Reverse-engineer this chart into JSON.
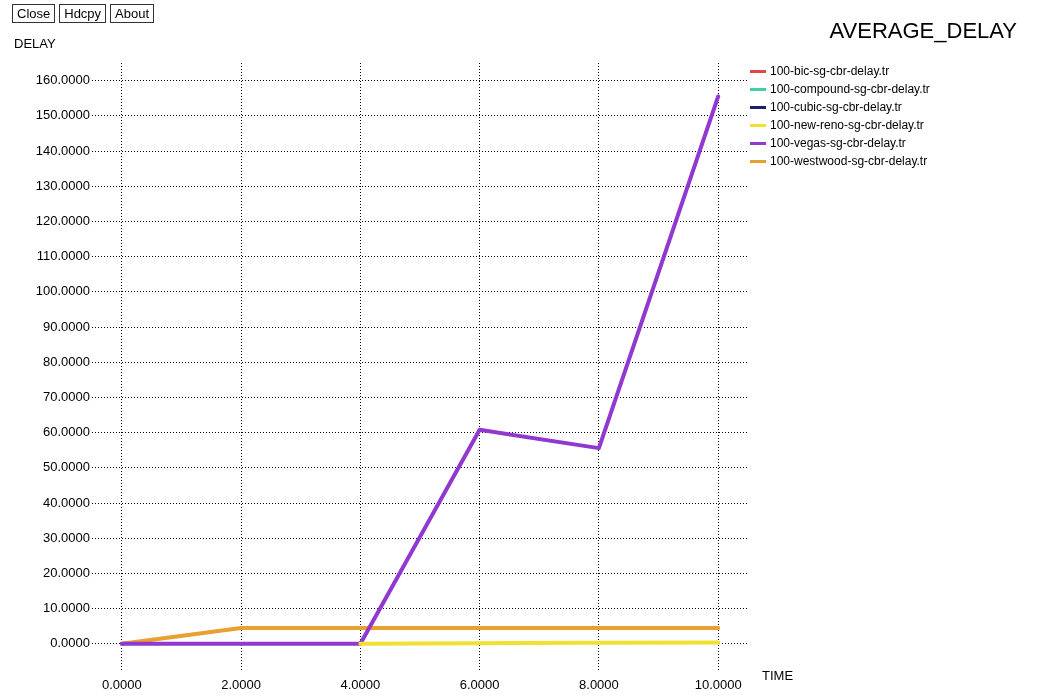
{
  "chart_data": {
    "type": "line",
    "title": "AVERAGE_DELAY",
    "xlabel": "TIME",
    "ylabel": "DELAY",
    "annotations": [
      "Close",
      "Hdcpy",
      "About"
    ],
    "x": [
      0,
      2,
      4,
      6,
      8,
      10
    ],
    "xlim": [
      -0.5,
      10.5
    ],
    "ylim": [
      -8,
      165
    ],
    "xticks": [
      {
        "value": 0,
        "label": "0.0000"
      },
      {
        "value": 2,
        "label": "2.0000"
      },
      {
        "value": 4,
        "label": "4.0000"
      },
      {
        "value": 6,
        "label": "6.0000"
      },
      {
        "value": 8,
        "label": "8.0000"
      },
      {
        "value": 10,
        "label": "10.0000"
      }
    ],
    "yticks": [
      {
        "value": 0,
        "label": "0.0000"
      },
      {
        "value": 10,
        "label": "10.0000"
      },
      {
        "value": 20,
        "label": "20.0000"
      },
      {
        "value": 30,
        "label": "30.0000"
      },
      {
        "value": 40,
        "label": "40.0000"
      },
      {
        "value": 50,
        "label": "50.0000"
      },
      {
        "value": 60,
        "label": "60.0000"
      },
      {
        "value": 70,
        "label": "70.0000"
      },
      {
        "value": 80,
        "label": "80.0000"
      },
      {
        "value": 90,
        "label": "90.0000"
      },
      {
        "value": 100,
        "label": "100.0000"
      },
      {
        "value": 110,
        "label": "110.0000"
      },
      {
        "value": 120,
        "label": "120.0000"
      },
      {
        "value": 130,
        "label": "130.0000"
      },
      {
        "value": 140,
        "label": "140.0000"
      },
      {
        "value": 150,
        "label": "150.0000"
      },
      {
        "value": 160,
        "label": "160.0000"
      }
    ],
    "grid": true,
    "legend": "right",
    "marker": "none",
    "line_style": "solid",
    "series": [
      {
        "name": "100-bic-sg-cbr-delay.tr",
        "color": "#e04848",
        "values": [
          null,
          null,
          null,
          null,
          null,
          null
        ]
      },
      {
        "name": "100-compound-sg-cbr-delay.tr",
        "color": "#40d0a8",
        "values": [
          null,
          null,
          null,
          null,
          null,
          null
        ]
      },
      {
        "name": "100-cubic-sg-cbr-delay.tr",
        "color": "#202068",
        "values": [
          null,
          null,
          null,
          null,
          null,
          null
        ]
      },
      {
        "name": "100-new-reno-sg-cbr-delay.tr",
        "color": "#f0e030",
        "values": [
          null,
          null,
          0,
          0.2,
          0.3,
          0.4
        ]
      },
      {
        "name": "100-vegas-sg-cbr-delay.tr",
        "color": "#9038d0",
        "values": [
          0,
          0,
          0,
          60.8,
          55.6,
          155.5
        ]
      },
      {
        "name": "100-westwood-sg-cbr-delay.tr",
        "color": "#e8a030",
        "values": [
          0,
          4.5,
          4.5,
          4.5,
          4.5,
          4.5
        ]
      }
    ]
  }
}
